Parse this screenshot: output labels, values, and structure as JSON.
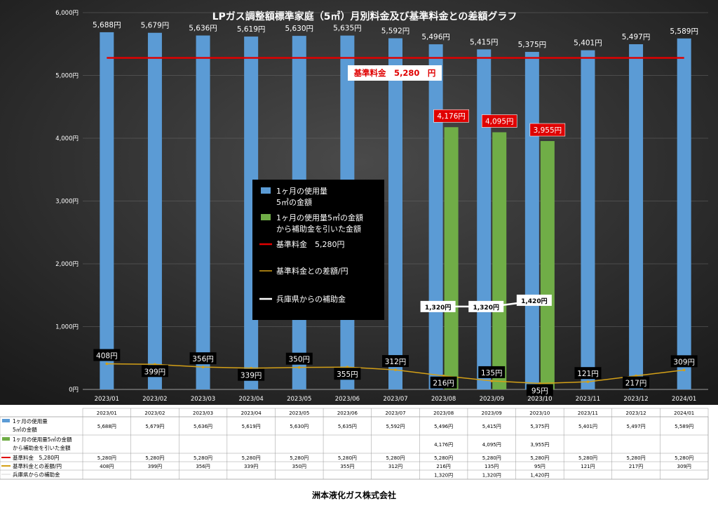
{
  "chart_data": {
    "type": "bar",
    "title": "LPガス調整額標準家庭（5㎥）月別料金及び基準料金との差額グラフ",
    "categories": [
      "2023/01",
      "2023/02",
      "2023/03",
      "2023/04",
      "2023/05",
      "2023/06",
      "2023/07",
      "2023/08",
      "2023/09",
      "2023/10",
      "2023/11",
      "2023/12",
      "2024/01"
    ],
    "ylim": [
      0,
      6000
    ],
    "y_ticks": [
      "0円",
      "1,000円",
      "2,000円",
      "3,000円",
      "4,000円",
      "5,000円",
      "6,000円"
    ],
    "y_tick_values": [
      0,
      1000,
      2000,
      3000,
      4000,
      5000,
      6000
    ],
    "baseline_annotation": "基準料金　5,280　円",
    "legend_position": "center",
    "series": [
      {
        "key": "monthly",
        "name": "1ヶ月の使用量\n5㎥の金額",
        "kind": "bar",
        "color": "#5B9BD5",
        "values": [
          5688,
          5679,
          5636,
          5619,
          5630,
          5635,
          5592,
          5496,
          5415,
          5375,
          5401,
          5497,
          5589
        ],
        "labels": [
          "5,688円",
          "5,679円",
          "5,636円",
          "5,619円",
          "5,630円",
          "5,635円",
          "5,592円",
          "5,496円",
          "5,415円",
          "5,375円",
          "5,401円",
          "5,497円",
          "5,589円"
        ],
        "table": [
          "5,688円",
          "5,679円",
          "5,636円",
          "5,619円",
          "5,630円",
          "5,635円",
          "5,592円",
          "5,496円",
          "5,415円",
          "5,375円",
          "5,401円",
          "5,497円",
          "5,589円"
        ]
      },
      {
        "key": "subsidized",
        "name": "1ヶ月の使用量5㎥の金額\nから補助金を引いた金額",
        "kind": "bar",
        "color": "#70AD47",
        "values": [
          null,
          null,
          null,
          null,
          null,
          null,
          null,
          4176,
          4095,
          3955,
          null,
          null,
          null
        ],
        "labels": [
          "",
          "",
          "",
          "",
          "",
          "",
          "",
          "4,176円",
          "4,095円",
          "3,955円",
          "",
          "",
          ""
        ],
        "table": [
          "",
          "",
          "",
          "",
          "",
          "",
          "",
          "4,176円",
          "4,095円",
          "3,955円",
          "",
          "",
          ""
        ]
      },
      {
        "key": "base",
        "name": "基準料金　5,280円",
        "kind": "line",
        "color": "#E00000",
        "values": [
          5280,
          5280,
          5280,
          5280,
          5280,
          5280,
          5280,
          5280,
          5280,
          5280,
          5280,
          5280,
          5280
        ],
        "table": [
          "5,280円",
          "5,280円",
          "5,280円",
          "5,280円",
          "5,280円",
          "5,280円",
          "5,280円",
          "5,280円",
          "5,280円",
          "5,280円",
          "5,280円",
          "5,280円",
          "5,280円"
        ]
      },
      {
        "key": "diff",
        "name": "基準料金との差額/円",
        "kind": "line",
        "color": "#D4A017",
        "values": [
          408,
          399,
          356,
          339,
          350,
          355,
          312,
          216,
          135,
          95,
          121,
          217,
          309
        ],
        "labels": [
          "408円",
          "399円",
          "356円",
          "339円",
          "350円",
          "355円",
          "312円",
          "216円",
          "135円",
          "95円",
          "121円",
          "217円",
          "309円"
        ],
        "table": [
          "408円",
          "399円",
          "356円",
          "339円",
          "350円",
          "355円",
          "312円",
          "216円",
          "135円",
          "95円",
          "121円",
          "217円",
          "309円"
        ]
      },
      {
        "key": "subsidy",
        "name": "兵庫県からの補助金",
        "kind": "line",
        "color": "#FFFFFF",
        "values": [
          null,
          null,
          null,
          null,
          null,
          null,
          null,
          1320,
          1320,
          1420,
          null,
          null,
          null
        ],
        "labels": [
          "",
          "",
          "",
          "",
          "",
          "",
          "",
          "1,320円",
          "1,320円",
          "1,420円",
          "",
          "",
          ""
        ],
        "table": [
          "",
          "",
          "",
          "",
          "",
          "",
          "",
          "1,320円",
          "1,320円",
          "1,420円",
          "",
          "",
          ""
        ]
      }
    ]
  },
  "footer": {
    "company": "洲本液化ガス株式会社"
  }
}
